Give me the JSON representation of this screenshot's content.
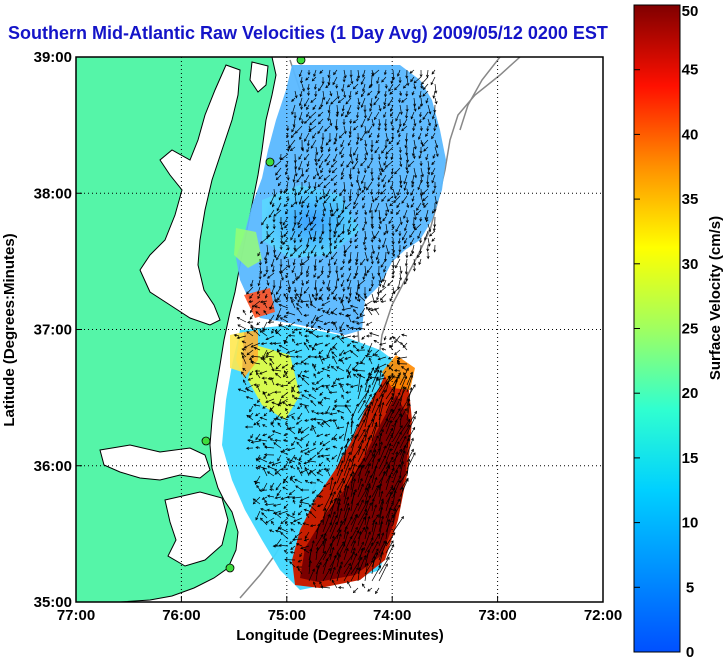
{
  "title": "Southern Mid-Atlantic Raw Velocities (1 Day Avg) 2009/05/12 0200 EST",
  "chart_data": {
    "type": "map",
    "xlabel": "Longitude (Degrees:Minutes)",
    "ylabel": "Latitude (Degrees:Minutes)",
    "x_ticks": [
      "77:00",
      "76:00",
      "75:00",
      "74:00",
      "73:00",
      "72:00"
    ],
    "y_ticks": [
      "39:00",
      "38:00",
      "37:00",
      "36:00",
      "35:00"
    ],
    "xlim": [
      -77,
      -72
    ],
    "ylim": [
      35,
      39
    ],
    "grid": true,
    "colorbar": {
      "label": "Surface Velocity (cm/s)",
      "range": [
        0,
        50
      ],
      "ticks": [
        "50",
        "45",
        "40",
        "35",
        "30",
        "25",
        "20",
        "15",
        "10",
        "5",
        "0"
      ],
      "colormap": "jet"
    },
    "colors": {
      "land": "#55f5a8",
      "coastline": "#000000",
      "bathymetry": "#888888",
      "grid": "#000000",
      "title": "#1414c8",
      "stations": "#3ddc3d"
    }
  }
}
